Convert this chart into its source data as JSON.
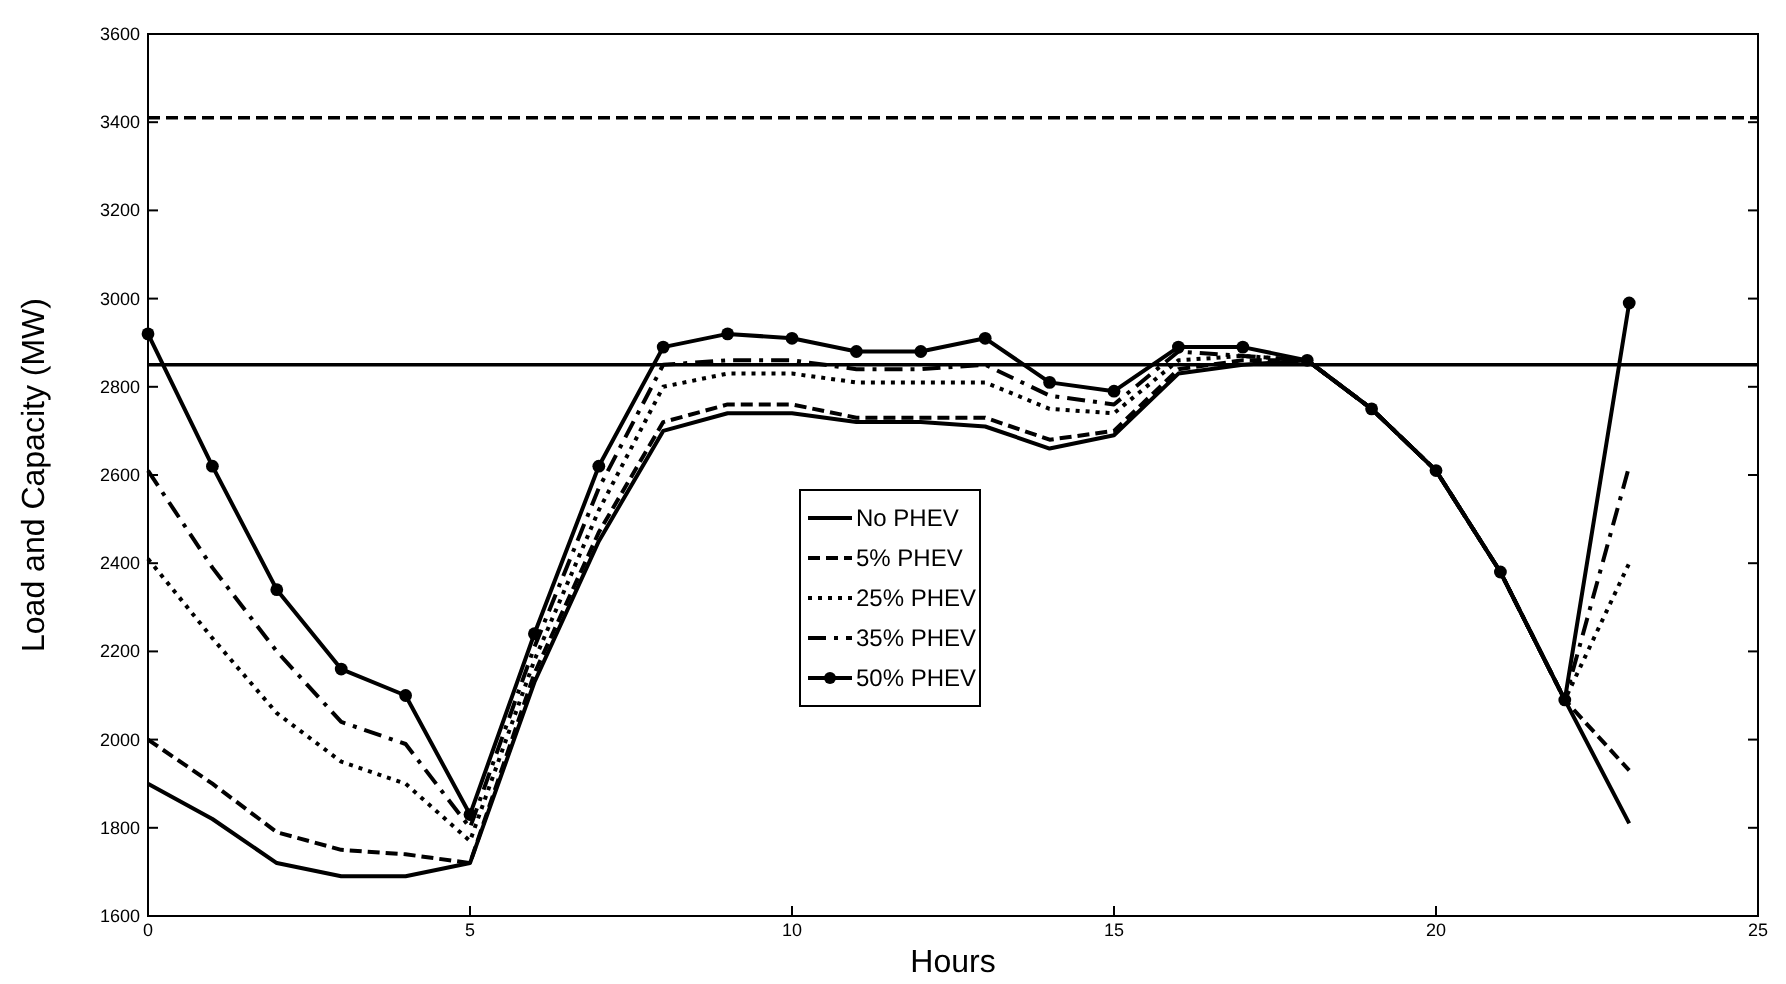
{
  "chart_data": {
    "type": "line",
    "xlabel": "Hours",
    "ylabel": "Load and Capacity (MW)",
    "x": [
      0,
      1,
      2,
      3,
      4,
      5,
      6,
      7,
      8,
      9,
      10,
      11,
      12,
      13,
      14,
      15,
      16,
      17,
      18,
      19,
      20,
      21,
      22,
      23
    ],
    "xlim": [
      0,
      25
    ],
    "xticks": [
      0,
      5,
      10,
      15,
      20,
      25
    ],
    "ylim": [
      1600,
      3600
    ],
    "yticks": [
      1600,
      1800,
      2000,
      2200,
      2400,
      2600,
      2800,
      3000,
      3200,
      3400,
      3600
    ],
    "grid": false,
    "legend": "center",
    "series": [
      {
        "name": "No PHEV",
        "color": "#000000",
        "line_style": "solid",
        "marker": "none",
        "values": [
          1900,
          1820,
          1720,
          1690,
          1690,
          1720,
          2130,
          2450,
          2700,
          2740,
          2740,
          2720,
          2720,
          2710,
          2660,
          2690,
          2830,
          2850,
          2860,
          2750,
          2610,
          2380,
          2090,
          1810
        ]
      },
      {
        "name": "5% PHEV",
        "color": "#000000",
        "line_style": "dashed",
        "marker": "none",
        "values": [
          2000,
          1900,
          1790,
          1750,
          1740,
          1720,
          2150,
          2470,
          2720,
          2760,
          2760,
          2730,
          2730,
          2730,
          2680,
          2700,
          2840,
          2860,
          2860,
          2750,
          2610,
          2380,
          2090,
          1930
        ]
      },
      {
        "name": "25% PHEV",
        "color": "#000000",
        "line_style": "dotted",
        "marker": "none",
        "values": [
          2410,
          2230,
          2060,
          1950,
          1900,
          1770,
          2180,
          2520,
          2800,
          2830,
          2830,
          2810,
          2810,
          2810,
          2750,
          2740,
          2860,
          2870,
          2860,
          2750,
          2610,
          2380,
          2090,
          2400
        ]
      },
      {
        "name": "35% PHEV",
        "color": "#000000",
        "line_style": "dashdot",
        "marker": "none",
        "values": [
          2610,
          2390,
          2200,
          2040,
          1990,
          1800,
          2210,
          2570,
          2850,
          2860,
          2860,
          2840,
          2840,
          2850,
          2780,
          2760,
          2880,
          2870,
          2860,
          2750,
          2610,
          2380,
          2090,
          2620
        ]
      },
      {
        "name": "50% PHEV",
        "color": "#000000",
        "line_style": "solid",
        "marker": "circle",
        "values": [
          2920,
          2620,
          2340,
          2160,
          2100,
          1830,
          2240,
          2620,
          2890,
          2920,
          2910,
          2880,
          2880,
          2910,
          2810,
          2790,
          2890,
          2890,
          2860,
          2750,
          2610,
          2380,
          2090,
          2990
        ]
      }
    ],
    "ref_lines": [
      {
        "axis": "y",
        "value": 3410,
        "color": "#000000",
        "line_style": "dashed"
      },
      {
        "axis": "y",
        "value": 2850,
        "color": "#000000",
        "line_style": "solid"
      }
    ]
  }
}
